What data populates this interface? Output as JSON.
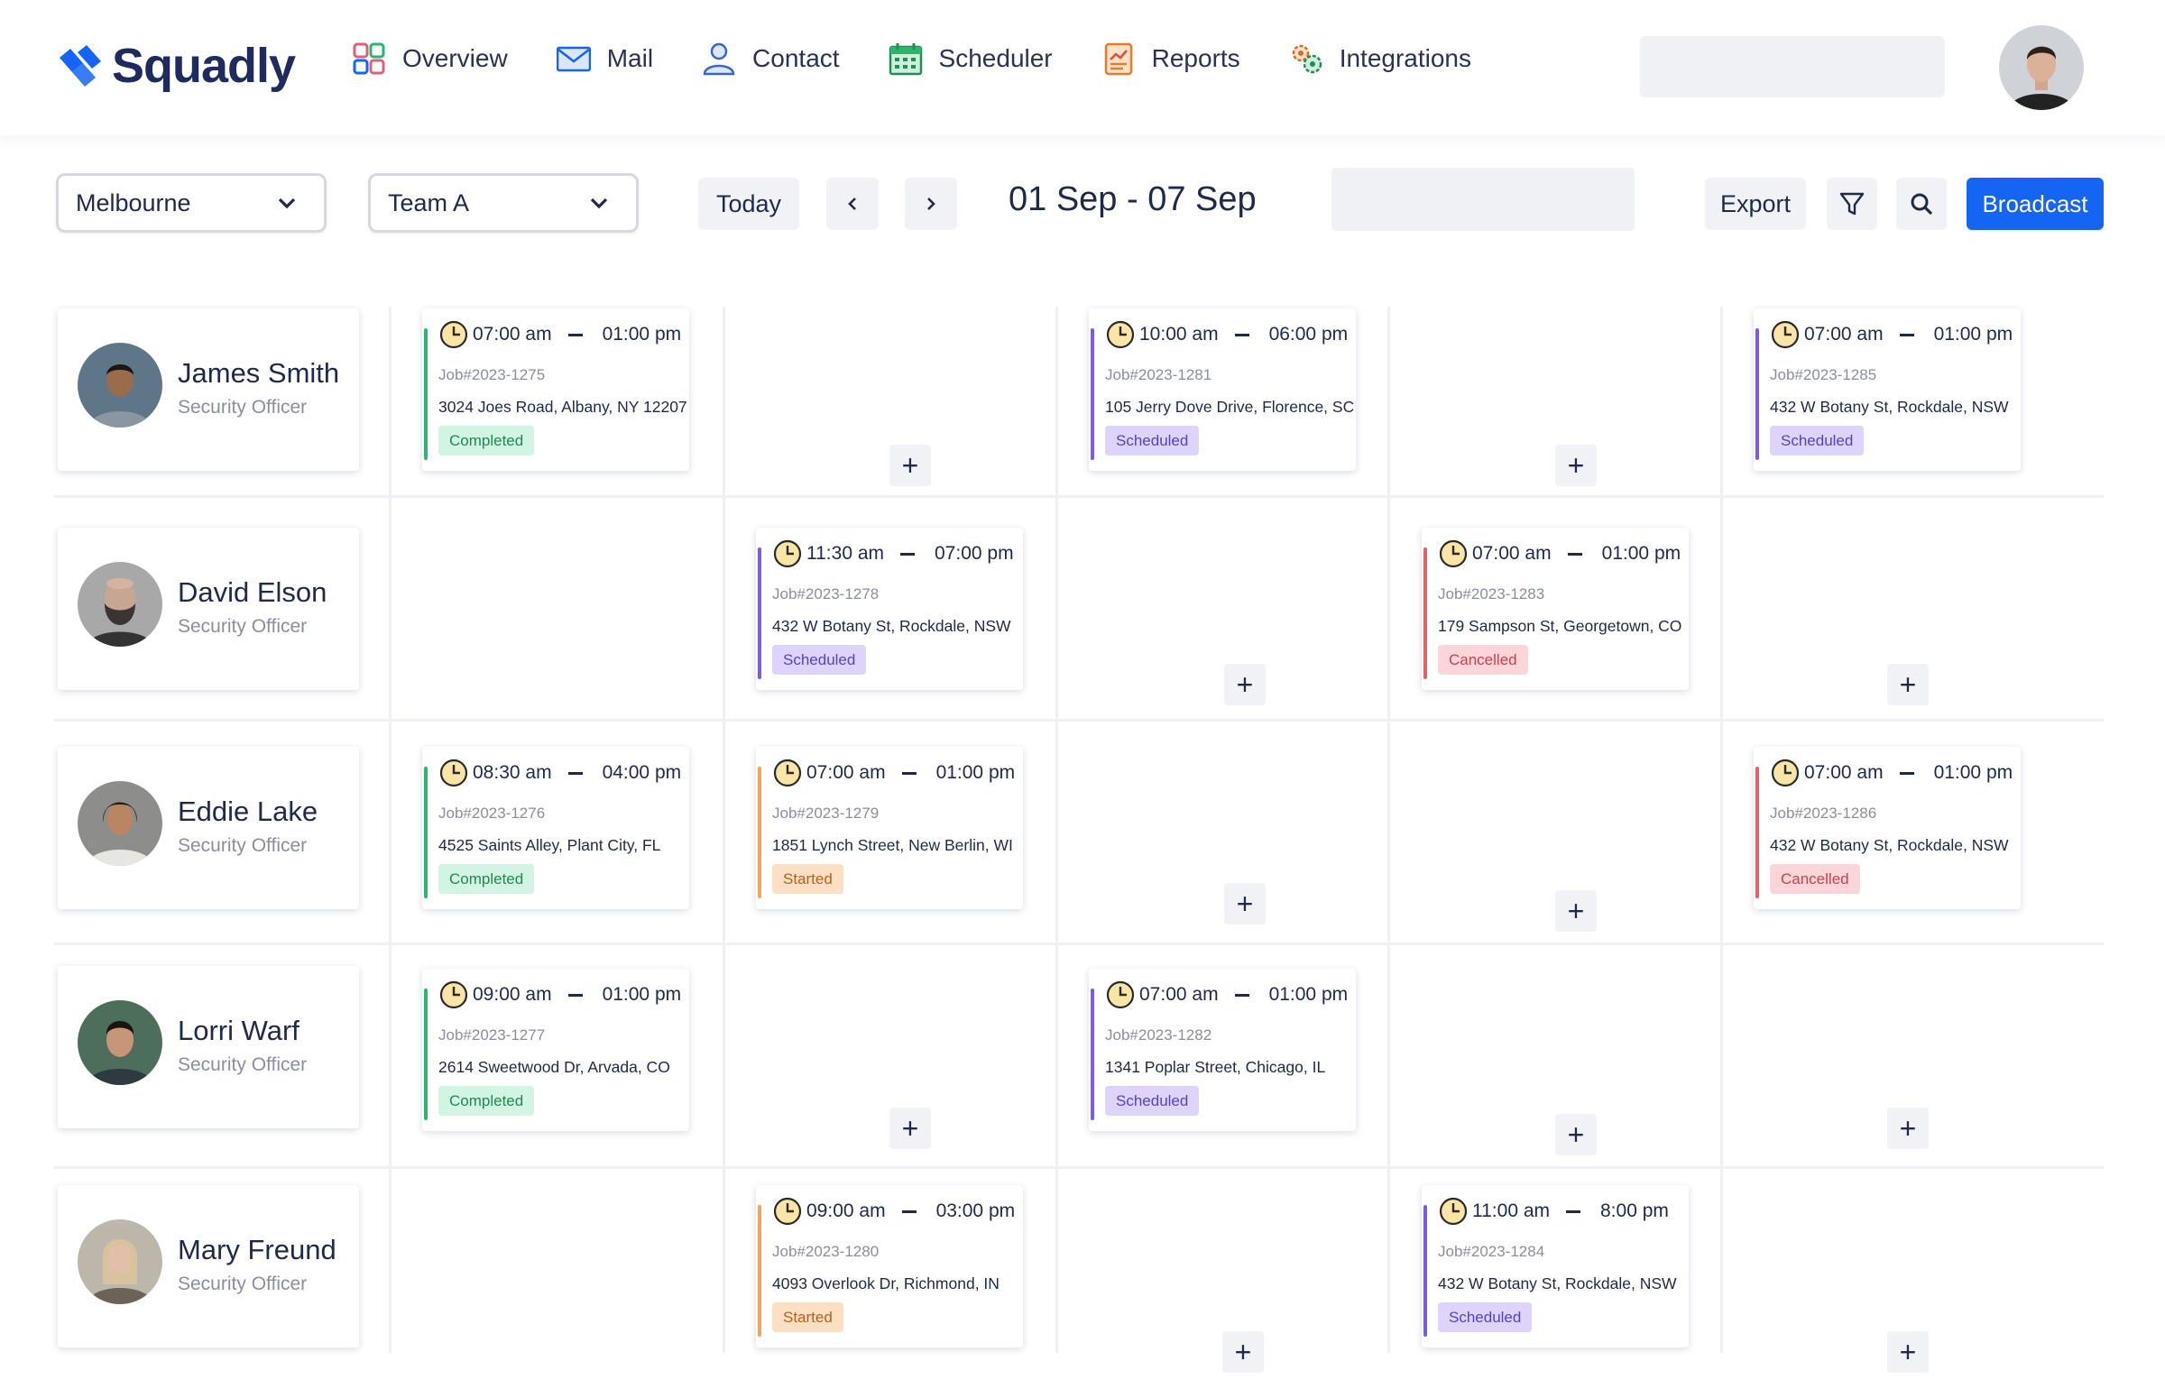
{
  "app": {
    "name": "Squadly"
  },
  "nav": [
    {
      "label": "Overview",
      "icon": "overview-icon"
    },
    {
      "label": "Mail",
      "icon": "mail-icon"
    },
    {
      "label": "Contact",
      "icon": "contact-icon"
    },
    {
      "label": "Scheduler",
      "icon": "scheduler-icon"
    },
    {
      "label": "Reports",
      "icon": "reports-icon"
    },
    {
      "label": "Integrations",
      "icon": "integrations-icon"
    }
  ],
  "toolbar": {
    "location": "Melbourne",
    "team": "Team A",
    "today_label": "Today",
    "prev_label": "‹",
    "next_label": "›",
    "date_range": "01 Sep - 07 Sep",
    "export_label": "Export",
    "broadcast_label": "Broadcast"
  },
  "colors": {
    "primary": "#1565f4",
    "completed": "#2bb56f",
    "scheduled": "#7c5ce6",
    "cancelled": "#e6606b",
    "started": "#f5a35a"
  },
  "staff": [
    {
      "name": "James Smith",
      "role": "Security Officer"
    },
    {
      "name": "David Elson",
      "role": "Security Officer"
    },
    {
      "name": "Eddie Lake",
      "role": "Security Officer"
    },
    {
      "name": "Lorri Warf",
      "role": "Security Officer"
    },
    {
      "name": "Mary Freund",
      "role": "Security Officer"
    }
  ],
  "shifts": {
    "s0_1": {
      "start": "07:00 am",
      "end": "01:00 pm",
      "job": "Job#2023-1275",
      "address": "3024 Joes Road, Albany, NY 12207",
      "status": "Completed"
    },
    "s0_3": {
      "start": "10:00 am",
      "end": "06:00 pm",
      "job": "Job#2023-1281",
      "address": "105 Jerry Dove Drive, Florence, SC",
      "status": "Scheduled"
    },
    "s0_5": {
      "start": "07:00 am",
      "end": "01:00 pm",
      "job": "Job#2023-1285",
      "address": "432 W Botany St, Rockdale, NSW",
      "status": "Scheduled"
    },
    "s1_2": {
      "start": "11:30 am",
      "end": "07:00 pm",
      "job": "Job#2023-1278",
      "address": "432 W Botany St, Rockdale, NSW",
      "status": "Scheduled"
    },
    "s1_4": {
      "start": "07:00 am",
      "end": "01:00 pm",
      "job": "Job#2023-1283",
      "address": "179 Sampson St, Georgetown, CO",
      "status": "Cancelled"
    },
    "s2_1": {
      "start": "08:30 am",
      "end": "04:00 pm",
      "job": "Job#2023-1276",
      "address": "4525 Saints Alley, Plant City, FL",
      "status": "Completed"
    },
    "s2_2": {
      "start": "07:00 am",
      "end": "01:00 pm",
      "job": "Job#2023-1279",
      "address": "1851 Lynch Street, New Berlin, WI",
      "status": "Started"
    },
    "s2_5": {
      "start": "07:00 am",
      "end": "01:00 pm",
      "job": "Job#2023-1286",
      "address": "432 W Botany St, Rockdale, NSW",
      "status": "Cancelled"
    },
    "s3_1": {
      "start": "09:00 am",
      "end": "01:00 pm",
      "job": "Job#2023-1277",
      "address": "2614 Sweetwood Dr, Arvada, CO",
      "status": "Completed"
    },
    "s3_3": {
      "start": "07:00 am",
      "end": "01:00 pm",
      "job": "Job#2023-1282",
      "address": "1341 Poplar Street, Chicago, IL",
      "status": "Scheduled"
    },
    "s4_2": {
      "start": "09:00 am",
      "end": "03:00 pm",
      "job": "Job#2023-1280",
      "address": "4093 Overlook Dr, Richmond, IN",
      "status": "Started"
    },
    "s4_4": {
      "start": "11:00 am",
      "end": "8:00 pm",
      "job": "Job#2023-1284",
      "address": "432 W Botany St, Rockdale, NSW",
      "status": "Scheduled"
    }
  },
  "add_label": "+"
}
